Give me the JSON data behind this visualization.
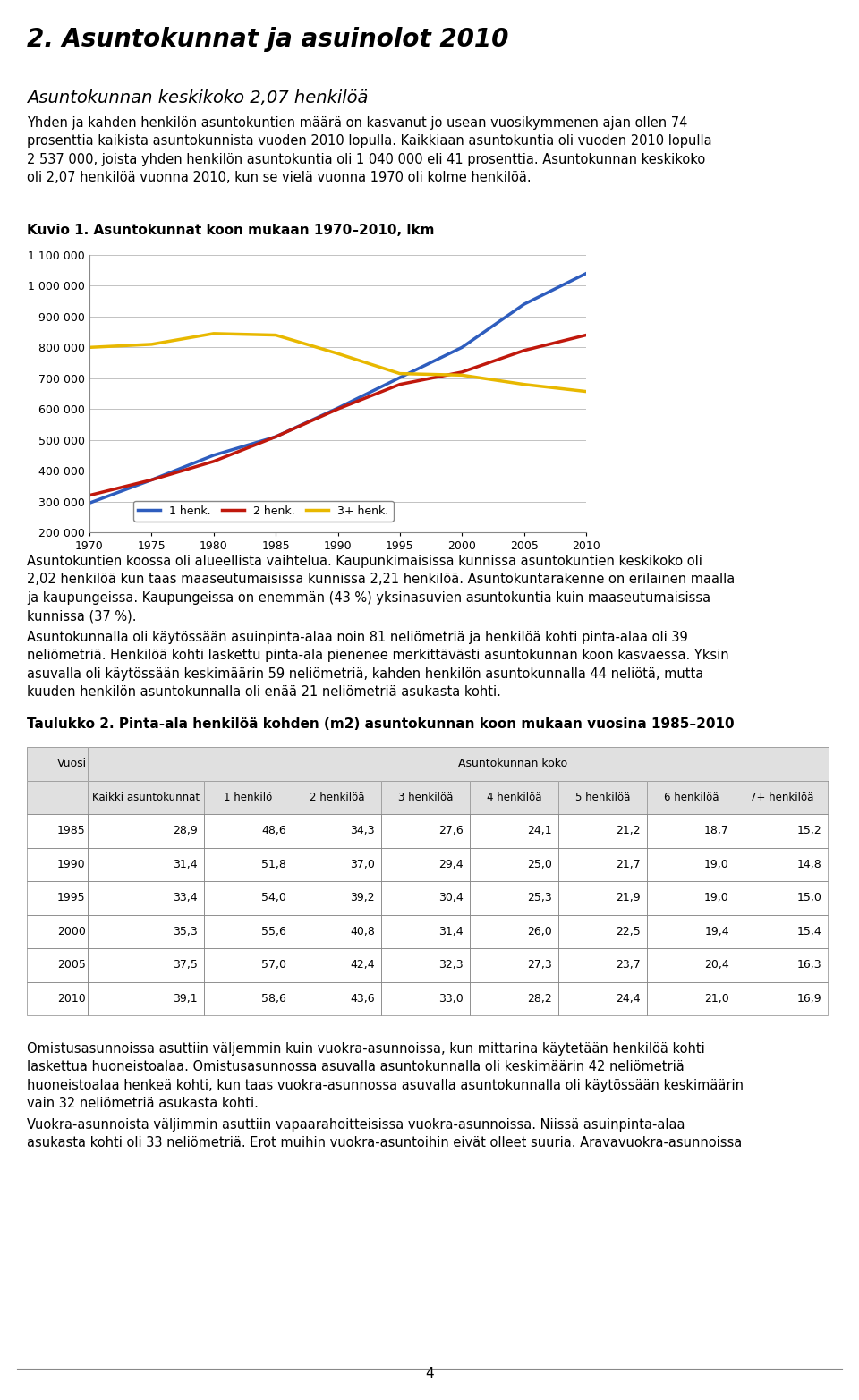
{
  "page_title": "2. Asuntokunnat ja asuinolot 2010",
  "section_title": "Asuntokunnan keskikoko 2,07 henkilöä",
  "para1": "Yhden ja kahden henkilön asuntokuntien määrä on kasvanut jo usean vuosikymmenen ajan ollen 74\nprosenttia kaikista asuntokunnista vuoden 2010 lopulla. Kaikkiaan asuntokuntia oli vuoden 2010 lopulla\n2 537 000, joista yhden henkilön asuntokuntia oli 1 040 000 eli 41 prosenttia. Asuntokunnan keskikoko\noli 2,07 henkilöä vuonna 2010, kun se vielä vuonna 1970 oli kolme henkilöä.",
  "chart_title": "Kuvio 1. Asuntokunnat koon mukaan 1970–2010, lkm",
  "years": [
    1970,
    1975,
    1980,
    1985,
    1990,
    1995,
    2000,
    2005,
    2010
  ],
  "henk1": [
    295000,
    370000,
    450000,
    510000,
    603000,
    702000,
    800000,
    940000,
    1040000
  ],
  "henk2": [
    320000,
    370000,
    430000,
    510000,
    600000,
    680000,
    720000,
    790000,
    840000
  ],
  "henk3plus": [
    800000,
    810000,
    845000,
    840000,
    780000,
    715000,
    710000,
    680000,
    657000
  ],
  "color_1henk": "#2e5dbe",
  "color_2henk": "#c0180c",
  "color_3plus": "#e8b800",
  "ylim_min": 200000,
  "ylim_max": 1100000,
  "yticks": [
    200000,
    300000,
    400000,
    500000,
    600000,
    700000,
    800000,
    900000,
    1000000,
    1100000
  ],
  "ytick_labels": [
    "200 000",
    "300 000",
    "400 000",
    "500 000",
    "600 000",
    "700 000",
    "800 000",
    "900 000",
    "1 000 000",
    "1 100 000"
  ],
  "legend_labels": [
    "1 henk.",
    "2 henk.",
    "3+ henk."
  ],
  "para2": "Asuntokuntien koossa oli alueellista vaihtelua. Kaupunkimaisissa kunnissa asuntokuntien keskikoko oli\n2,02 henkilöä kun taas maaseutumaisissa kunnissa 2,21 henkilöä. Asuntokuntarakenne on erilainen maalla\nja kaupungeissa. Kaupungeissa on enemmän (43 %) yksinasuvien asuntokuntia kuin maaseutumaisissa\nkunnissa (37 %).",
  "para3": "Asuntokunnalla oli käytössään asuinpinta-alaa noin 81 neliömetriä ja henkilöä kohti pinta-alaa oli 39\nneliömetriä. Henkilöä kohti laskettu pinta-ala pienenee merkittävästi asuntokunnan koon kasvaessa. Yksin\nasuvalla oli käytössään keskimäärin 59 neliömetriä, kahden henkilön asuntokunnalla 44 neliötä, mutta\nkuuden henkilön asuntokunnalla oli enää 21 neliömetriä asukasta kohti.",
  "table_title": "Taulukko 2. Pinta-ala henkilöä kohden (m2) asuntokunnan koon mukaan vuosina 1985–2010",
  "table_header2": [
    "",
    "Kaikki asuntokunnat",
    "1 henkilö",
    "2 henkilöä",
    "3 henkilöä",
    "4 henkilöä",
    "5 henkilöä",
    "6 henkilöä",
    "7+ henkilöä"
  ],
  "table_data": [
    [
      "1985",
      "28,9",
      "48,6",
      "34,3",
      "27,6",
      "24,1",
      "21,2",
      "18,7",
      "15,2"
    ],
    [
      "1990",
      "31,4",
      "51,8",
      "37,0",
      "29,4",
      "25,0",
      "21,7",
      "19,0",
      "14,8"
    ],
    [
      "1995",
      "33,4",
      "54,0",
      "39,2",
      "30,4",
      "25,3",
      "21,9",
      "19,0",
      "15,0"
    ],
    [
      "2000",
      "35,3",
      "55,6",
      "40,8",
      "31,4",
      "26,0",
      "22,5",
      "19,4",
      "15,4"
    ],
    [
      "2005",
      "37,5",
      "57,0",
      "42,4",
      "32,3",
      "27,3",
      "23,7",
      "20,4",
      "16,3"
    ],
    [
      "2010",
      "39,1",
      "58,6",
      "43,6",
      "33,0",
      "28,2",
      "24,4",
      "21,0",
      "16,9"
    ]
  ],
  "para4": "Omistusasunnoissa asuttiin väljemmin kuin vuokra-asunnoissa, kun mittarina käytetään henkilöä kohti\nlaskettua huoneistoalaa. Omistusasunnossa asuvalla asuntokunnalla oli keskimäärin 42 neliömetriä\nhuoneistoalaa henkeä kohti, kun taas vuokra-asunnossa asuvalla asuntokunnalla oli käytössään keskimäärin\nvain 32 neliömetriä asukasta kohti.",
  "para5": "Vuokra-asunnoista väljimmin asuttiin vapaarahoitteisissa vuokra-asunnoissa. Niissä asuinpinta-alaa\nasukasta kohti oli 33 neliömetriä. Erot muihin vuokra-asuntoihin eivät olleet suuria. Aravavuokra-asunnoissa",
  "page_num": "4",
  "background_color": "#ffffff",
  "text_color": "#000000",
  "line_width": 2.5
}
